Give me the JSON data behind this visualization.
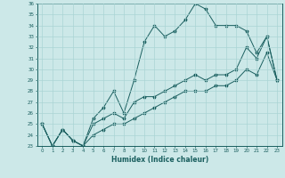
{
  "xlabel": "Humidex (Indice chaleur)",
  "background_color": "#cce8e8",
  "line_color": "#1a5f5f",
  "grid_color": "#aad4d4",
  "ylim": [
    23,
    36
  ],
  "xlim": [
    -0.5,
    23.5
  ],
  "yticks": [
    23,
    24,
    25,
    26,
    27,
    28,
    29,
    30,
    31,
    32,
    33,
    34,
    35,
    36
  ],
  "xticks": [
    0,
    1,
    2,
    3,
    4,
    5,
    6,
    7,
    8,
    9,
    10,
    11,
    12,
    13,
    14,
    15,
    16,
    17,
    18,
    19,
    20,
    21,
    22,
    23
  ],
  "series1": [
    25,
    23,
    24.5,
    23.5,
    23,
    25.5,
    26.5,
    28,
    26,
    29,
    32.5,
    34,
    33,
    33.5,
    34.5,
    36,
    35.5,
    34,
    34,
    34,
    33.5,
    31.5,
    33,
    29
  ],
  "series2": [
    25,
    23,
    24.5,
    23.5,
    23,
    25,
    25.5,
    26,
    25.5,
    27,
    27.5,
    27.5,
    28,
    28.5,
    29,
    29.5,
    29,
    29.5,
    29.5,
    30,
    32,
    31,
    33,
    29
  ],
  "series3": [
    25,
    23,
    24.5,
    23.5,
    23,
    24,
    24.5,
    25,
    25,
    25.5,
    26,
    26.5,
    27,
    27.5,
    28,
    28,
    28,
    28.5,
    28.5,
    29,
    30,
    29.5,
    31.5,
    29
  ]
}
